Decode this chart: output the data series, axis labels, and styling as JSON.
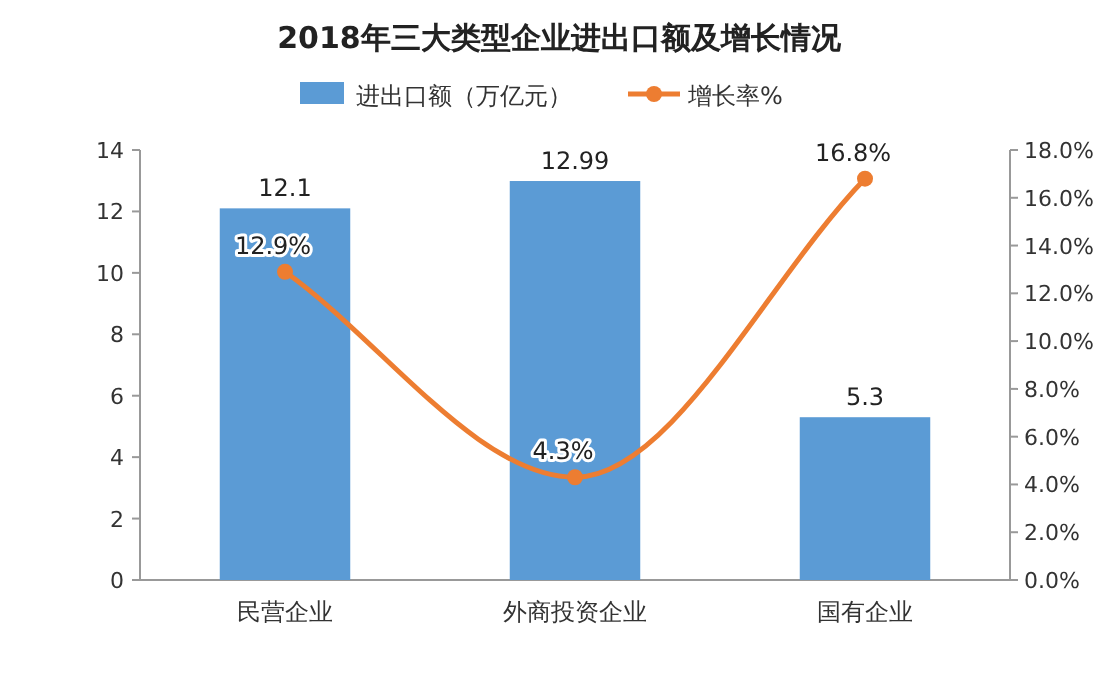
{
  "chart_data": {
    "type": "bar",
    "title": "2018年三大类型企业进出口额及增长情况",
    "categories": [
      "民营企业",
      "外商投资企业",
      "国有企业"
    ],
    "series": [
      {
        "name": "进出口额（万亿元）",
        "color": "#5b9bd5",
        "values": [
          12.1,
          12.99,
          5.3
        ],
        "value_labels": [
          "12.1",
          "12.99",
          "5.3"
        ]
      },
      {
        "name": "增长率%",
        "type": "line",
        "axis": "y2",
        "color": "#ed7d31",
        "marker": "circle",
        "values": [
          12.9,
          4.3,
          16.8
        ],
        "value_labels": [
          "12.9%",
          "4.3%",
          "16.8%"
        ]
      }
    ],
    "ylim": [
      0,
      14
    ],
    "yticks": [
      0,
      2,
      4,
      6,
      8,
      10,
      12,
      14
    ],
    "y2lim": [
      0,
      18
    ],
    "y2ticks": [
      {
        "value": 0,
        "label": "0.0%"
      },
      {
        "value": 2,
        "label": "2.0%"
      },
      {
        "value": 4,
        "label": "4.0%"
      },
      {
        "value": 6,
        "label": "6.0%"
      },
      {
        "value": 8,
        "label": "8.0%"
      },
      {
        "value": 10,
        "label": "10.0%"
      },
      {
        "value": 12,
        "label": "12.0%"
      },
      {
        "value": 14,
        "label": "14.0%"
      },
      {
        "value": 16,
        "label": "16.0%"
      },
      {
        "value": 18,
        "label": "18.0%"
      }
    ],
    "legend": "top",
    "grid": false
  }
}
